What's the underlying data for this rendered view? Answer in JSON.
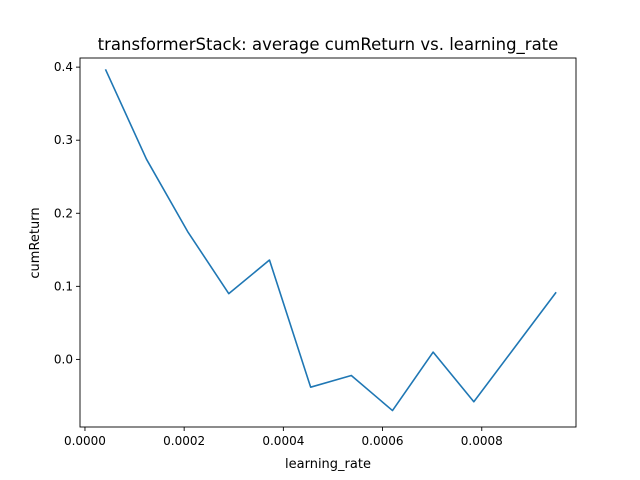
{
  "chart_data": {
    "type": "line",
    "title": "transformerStack: average cumReturn vs. learning_rate",
    "xlabel": "learning_rate",
    "ylabel": "cumReturn",
    "xlim": [
      -1e-05,
      0.00099
    ],
    "ylim": [
      -0.0925,
      0.4125
    ],
    "xticks": [
      0.0,
      0.0002,
      0.0004,
      0.0006,
      0.0008
    ],
    "xtick_labels": [
      "0.0000",
      "0.0002",
      "0.0004",
      "0.0006",
      "0.0008"
    ],
    "yticks": [
      0.0,
      0.1,
      0.2,
      0.3,
      0.4
    ],
    "ytick_labels": [
      "0.0",
      "0.1",
      "0.2",
      "0.3",
      "0.4"
    ],
    "grid": false,
    "series": [
      {
        "color": "#1f77b4",
        "x": [
          4.2e-05,
          0.000124,
          0.000207,
          0.00029,
          0.000372,
          0.000455,
          0.000537,
          0.00062,
          0.000702,
          0.000784,
          0.000867,
          0.000949
        ],
        "y": [
          0.396,
          0.274,
          0.175,
          0.09,
          0.136,
          -0.038,
          -0.022,
          -0.07,
          0.01,
          -0.058,
          0.017,
          0.091
        ]
      }
    ]
  }
}
